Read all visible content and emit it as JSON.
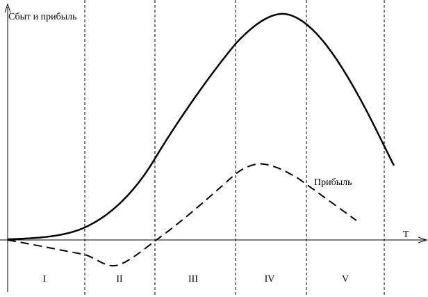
{
  "axes": {
    "y_label": "Сбыт и прибыль",
    "x_label": "T"
  },
  "curve_labels": {
    "profit": "Прибыль"
  },
  "stages": [
    "I",
    "II",
    "III",
    "IV",
    "V"
  ]
}
